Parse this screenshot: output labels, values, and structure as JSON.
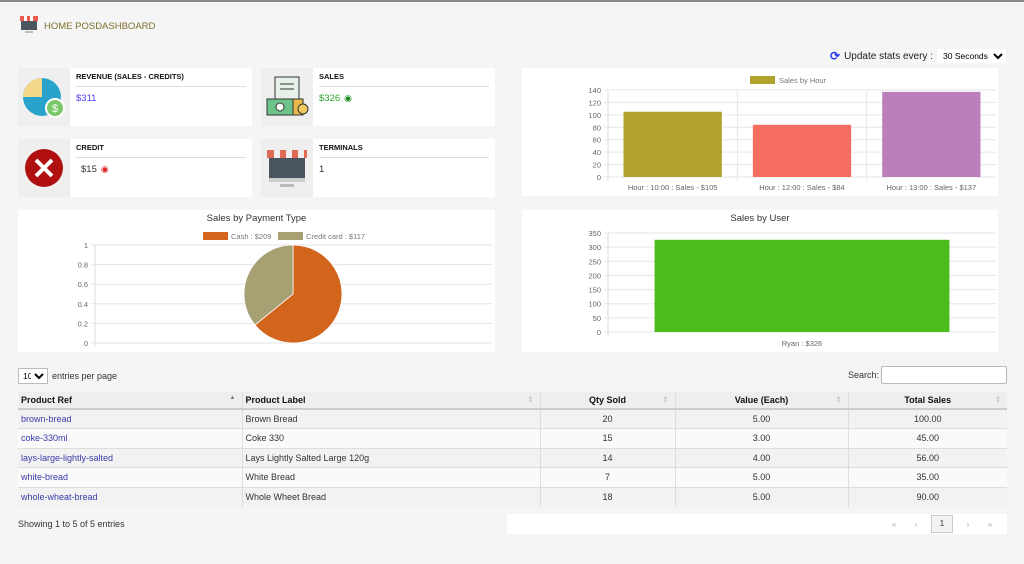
{
  "header": {
    "title": "HOME POSDASHBOARD"
  },
  "update": {
    "label": "Update stats every :",
    "selected": "30 Seconds"
  },
  "cards": [
    {
      "title": "REVENUE (SALES - CREDITS)",
      "value": "$311",
      "color": "#4a3cf0"
    },
    {
      "title": "SALES",
      "value": "$326",
      "color": "#2ea52e"
    },
    {
      "title": "CREDIT",
      "value": "$15",
      "color": "#333333"
    },
    {
      "title": "TERMINALS",
      "value": "1",
      "color": "#333333"
    }
  ],
  "chart_data": [
    {
      "type": "bar",
      "title": "",
      "legend": "Sales by Hour",
      "categories": [
        "Hour : 10:00 : Sales - $105",
        "Hour : 12:00 : Sales - $84",
        "Hour : 13:00 : Sales - $137"
      ],
      "values": [
        105,
        84,
        137
      ],
      "colors": [
        "#b0a22c",
        "#f56e5f",
        "#bb80bc"
      ],
      "ylim": [
        0,
        140
      ],
      "yticks": [
        "0",
        "20",
        "40",
        "60",
        "80",
        "100",
        "120",
        "140"
      ]
    },
    {
      "type": "pie",
      "title": "Sales by Payment Type",
      "labels": [
        "Cash : $209",
        "Credit card : $117"
      ],
      "values": [
        209,
        117
      ],
      "colors": [
        "#d2641c",
        "#a6a073"
      ],
      "yticks": [
        "0",
        "0.2",
        "0.4",
        "0.6",
        "0.8",
        "1"
      ]
    },
    {
      "type": "bar",
      "title": "Sales by User",
      "categories": [
        "Ryan : $326"
      ],
      "values": [
        326
      ],
      "colors": [
        "#4cbb1c"
      ],
      "ylim": [
        0,
        350
      ],
      "yticks": [
        "0",
        "50",
        "100",
        "150",
        "200",
        "250",
        "300",
        "350"
      ]
    }
  ],
  "table": {
    "length_value": "10",
    "length_label": "entries per page",
    "search_label": "Search:",
    "search_value": "",
    "headers": [
      "Product Ref",
      "Product Label",
      "Qty Sold",
      "Value (Each)",
      "Total Sales"
    ],
    "rows": [
      [
        "brown-bread",
        "Brown Bread",
        "20",
        "5.00",
        "100.00"
      ],
      [
        "coke-330ml",
        "Coke 330",
        "15",
        "3.00",
        "45.00"
      ],
      [
        "lays-large-lightly-salted",
        "Lays Lightly Salted Large 120g",
        "14",
        "4.00",
        "56.00"
      ],
      [
        "white-bread",
        "White Bread",
        "7",
        "5.00",
        "35.00"
      ],
      [
        "whole-wheat-bread",
        "Whole Wheet Bread",
        "18",
        "5.00",
        "90.00"
      ]
    ],
    "info": "Showing 1 to 5 of 5 entries",
    "pager": {
      "first": "«",
      "prev": "‹",
      "current": "1",
      "next": "›",
      "last": "»"
    }
  }
}
